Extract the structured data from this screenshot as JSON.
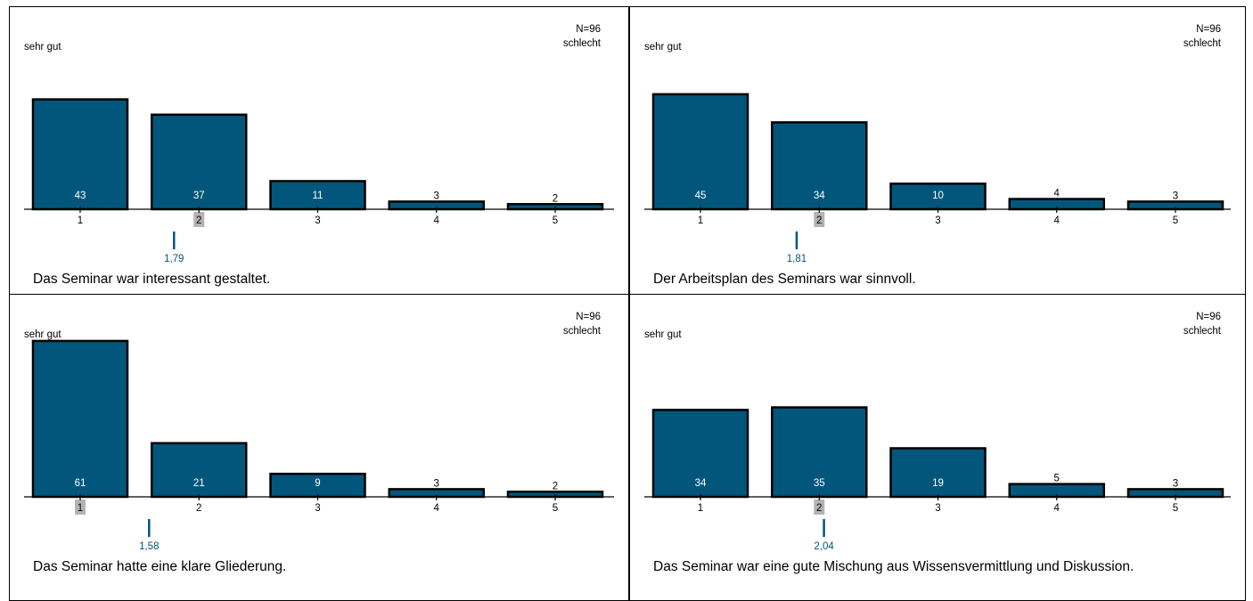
{
  "colors": {
    "bar": "#02567c",
    "mean": "#02567c",
    "median_bg": "#b3b3b3",
    "axis": "#000000"
  },
  "chart_data": [
    {
      "type": "bar",
      "title": "Das Seminar war interessant gestaltet.",
      "n_label": "N=96",
      "left_label": "sehr gut",
      "right_label": "schlecht",
      "categories": [
        "1",
        "2",
        "3",
        "4",
        "5"
      ],
      "values": [
        43,
        37,
        11,
        3,
        2
      ],
      "median_category": "2",
      "mean": 1.79,
      "mean_label": "1,79"
    },
    {
      "type": "bar",
      "title": "Der Arbeitsplan des Seminars war sinnvoll.",
      "n_label": "N=96",
      "left_label": "sehr gut",
      "right_label": "schlecht",
      "categories": [
        "1",
        "2",
        "3",
        "4",
        "5"
      ],
      "values": [
        45,
        34,
        10,
        4,
        3
      ],
      "median_category": "2",
      "mean": 1.81,
      "mean_label": "1,81"
    },
    {
      "type": "bar",
      "title": "Das Seminar hatte eine klare Gliederung.",
      "n_label": "N=96",
      "left_label": "sehr gut",
      "right_label": "schlecht",
      "categories": [
        "1",
        "2",
        "3",
        "4",
        "5"
      ],
      "values": [
        61,
        21,
        9,
        3,
        2
      ],
      "median_category": "1",
      "mean": 1.58,
      "mean_label": "1,58"
    },
    {
      "type": "bar",
      "title": "Das Seminar war eine gute Mischung aus Wissensvermittlung und Diskussion.",
      "n_label": "N=96",
      "left_label": "sehr gut",
      "right_label": "schlecht",
      "categories": [
        "1",
        "2",
        "3",
        "4",
        "5"
      ],
      "values": [
        34,
        35,
        19,
        5,
        3
      ],
      "median_category": "2",
      "mean": 2.04,
      "mean_label": "2,04"
    }
  ]
}
